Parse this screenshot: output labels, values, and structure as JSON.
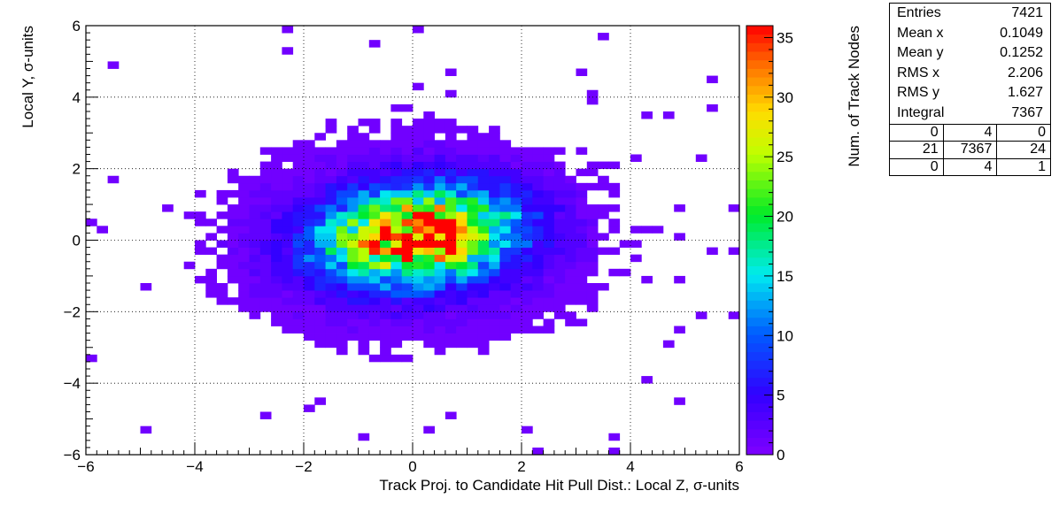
{
  "chart_data": {
    "type": "heatmap",
    "title": "",
    "xlabel": "Track Proj. to Candidate Hit Pull Dist.: Local Z, σ-units",
    "ylabel": "Local Y, σ-units",
    "zlabel": "Num. of Track Nodes",
    "xlim": [
      -6,
      6
    ],
    "ylim": [
      -6,
      6
    ],
    "zlim": [
      0,
      36
    ],
    "x_ticks": [
      -6,
      -4,
      -2,
      0,
      2,
      4,
      6
    ],
    "y_ticks": [
      -6,
      -4,
      -2,
      0,
      2,
      4,
      6
    ],
    "z_ticks": [
      0,
      5,
      10,
      15,
      20,
      25,
      30,
      35
    ],
    "x_tick_labels": [
      "−6",
      "−4",
      "−2",
      "0",
      "2",
      "4",
      "6"
    ],
    "y_tick_labels": [
      "−6",
      "−4",
      "−2",
      "0",
      "2",
      "4",
      "6"
    ],
    "z_tick_labels": [
      "0",
      "5",
      "10",
      "15",
      "20",
      "25",
      "30",
      "35"
    ],
    "bins": {
      "nx": 60,
      "ny": 60
    },
    "grid": true,
    "colormap": "rainbow",
    "distribution": {
      "core": {
        "mean": [
          0.1,
          0.13
        ],
        "sigma": [
          1.15,
          0.85
        ],
        "peak": 33,
        "tilt": -0.15
      },
      "halo": {
        "sigma": [
          2.9,
          2.4
        ],
        "level": 3.2,
        "cutoff_radius": 1.05
      },
      "total_entries": 7421
    }
  },
  "stats": {
    "rows": [
      {
        "label": "Entries",
        "value": "7421"
      },
      {
        "label": "Mean x",
        "value": "0.1049"
      },
      {
        "label": "Mean y",
        "value": "0.1252"
      },
      {
        "label": "RMS x",
        "value": "2.206"
      },
      {
        "label": "RMS y",
        "value": "1.627"
      },
      {
        "label": "Integral",
        "value": "7367"
      }
    ],
    "grid": [
      [
        "0",
        "4",
        "0"
      ],
      [
        "21",
        "7367",
        "24"
      ],
      [
        "0",
        "4",
        "1"
      ]
    ]
  }
}
